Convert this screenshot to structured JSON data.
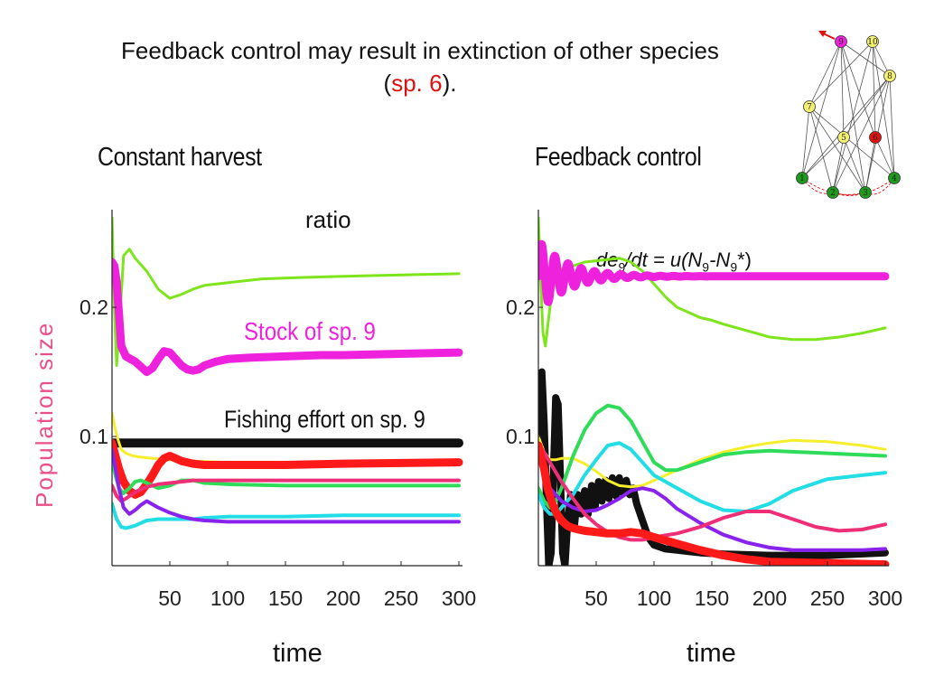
{
  "slide": {
    "title_main": "Feedback control may result in extinction of other species",
    "title_open": "(",
    "title_highlight": "sp. 6",
    "title_close": ")."
  },
  "annotations": {
    "ratio": "ratio",
    "equation": {
      "d": "de",
      "sub1": "9",
      "mid": "/dt = ",
      "u": "u",
      "open": "(N",
      "sub2": "9",
      "dash": "-N",
      "sub3": "9",
      "close": "*)"
    },
    "stock_label": "Stock of sp. 9",
    "effort_label": "Fishing effort on sp. 9"
  },
  "colors": {
    "lime": "#7ee51c",
    "magenta": "#ee22dd",
    "black": "#111111",
    "red": "#ff1a1a",
    "yellow": "#f6ee2a",
    "green": "#2fdc5a",
    "cyan": "#22dde6",
    "pink": "#ee2f78",
    "purple": "#8a22ee",
    "network_green": "#1e9a1e",
    "network_yellow": "#f3ef70",
    "network_red": "#e01010"
  },
  "chart_data": [
    {
      "type": "line",
      "title": "Constant harvest",
      "xlabel": "time",
      "ylabel": "Population size",
      "xlim": [
        0,
        300
      ],
      "ylim": [
        0,
        0.27
      ],
      "xticks": [
        "50",
        "100",
        "150",
        "200",
        "250",
        "300"
      ],
      "xtick_values": [
        50,
        100,
        150,
        200,
        250,
        300
      ],
      "yticks": [
        "0.1",
        "0.2"
      ],
      "ytick_values": [
        0.1,
        0.2
      ],
      "series": [
        {
          "color": "lime",
          "width": 3,
          "x": [
            0,
            2,
            4,
            6,
            10,
            15,
            20,
            30,
            40,
            50,
            60,
            70,
            80,
            100,
            130,
            160,
            200,
            250,
            300
          ],
          "y": [
            0.27,
            0.2,
            0.155,
            0.18,
            0.24,
            0.245,
            0.238,
            0.228,
            0.214,
            0.207,
            0.21,
            0.214,
            0.217,
            0.219,
            0.222,
            0.223,
            0.224,
            0.225,
            0.226
          ]
        },
        {
          "name": "Stock of sp. 9",
          "color": "magenta",
          "width": 9,
          "x": [
            0,
            2,
            4,
            6,
            8,
            12,
            16,
            20,
            25,
            30,
            35,
            40,
            45,
            50,
            55,
            60,
            65,
            70,
            75,
            80,
            90,
            100,
            120,
            150,
            180,
            200,
            250,
            300
          ],
          "y": [
            0.235,
            0.232,
            0.22,
            0.195,
            0.17,
            0.162,
            0.16,
            0.158,
            0.154,
            0.15,
            0.153,
            0.16,
            0.166,
            0.165,
            0.16,
            0.155,
            0.152,
            0.151,
            0.152,
            0.155,
            0.158,
            0.16,
            0.161,
            0.162,
            0.163,
            0.163,
            0.164,
            0.165
          ]
        },
        {
          "name": "Fishing effort on sp. 9",
          "color": "black",
          "width": 10,
          "x": [
            0,
            300
          ],
          "y": [
            0.095,
            0.095
          ]
        },
        {
          "color": "yellow",
          "width": 3,
          "x": [
            0,
            3,
            5,
            8,
            12,
            18,
            25,
            35,
            50,
            70,
            100,
            150,
            200,
            250,
            300
          ],
          "y": [
            0.118,
            0.105,
            0.098,
            0.09,
            0.087,
            0.085,
            0.084,
            0.083,
            0.082,
            0.081,
            0.08,
            0.079,
            0.078,
            0.078,
            0.078
          ]
        },
        {
          "color": "red",
          "width": 9,
          "x": [
            0,
            3,
            6,
            10,
            15,
            20,
            25,
            30,
            35,
            40,
            45,
            50,
            55,
            60,
            65,
            70,
            80,
            100,
            150,
            200,
            300
          ],
          "y": [
            0.095,
            0.085,
            0.075,
            0.065,
            0.058,
            0.055,
            0.057,
            0.063,
            0.07,
            0.078,
            0.083,
            0.085,
            0.083,
            0.081,
            0.08,
            0.079,
            0.078,
            0.078,
            0.078,
            0.079,
            0.08
          ]
        },
        {
          "color": "green",
          "width": 4,
          "x": [
            0,
            3,
            6,
            10,
            15,
            20,
            25,
            30,
            40,
            50,
            60,
            70,
            80,
            100,
            150,
            200,
            300
          ],
          "y": [
            0.082,
            0.07,
            0.06,
            0.056,
            0.06,
            0.065,
            0.066,
            0.064,
            0.06,
            0.062,
            0.066,
            0.066,
            0.064,
            0.063,
            0.062,
            0.062,
            0.062
          ]
        },
        {
          "color": "pink",
          "width": 4,
          "x": [
            0,
            4,
            8,
            12,
            20,
            30,
            40,
            50,
            60,
            70,
            80,
            100,
            150,
            200,
            300
          ],
          "y": [
            0.062,
            0.054,
            0.05,
            0.052,
            0.057,
            0.061,
            0.063,
            0.064,
            0.065,
            0.066,
            0.066,
            0.066,
            0.066,
            0.066,
            0.066
          ]
        },
        {
          "color": "cyan",
          "width": 4,
          "x": [
            0,
            4,
            8,
            12,
            20,
            30,
            40,
            50,
            60,
            70,
            80,
            100,
            150,
            200,
            300
          ],
          "y": [
            0.048,
            0.036,
            0.03,
            0.029,
            0.031,
            0.035,
            0.036,
            0.036,
            0.036,
            0.036,
            0.037,
            0.038,
            0.038,
            0.039,
            0.039
          ]
        },
        {
          "color": "purple",
          "width": 4,
          "x": [
            0,
            3,
            6,
            10,
            15,
            20,
            25,
            30,
            40,
            50,
            60,
            70,
            80,
            100,
            150,
            200,
            300
          ],
          "y": [
            0.09,
            0.075,
            0.06,
            0.045,
            0.04,
            0.043,
            0.047,
            0.05,
            0.045,
            0.041,
            0.038,
            0.036,
            0.035,
            0.034,
            0.034,
            0.034,
            0.034
          ]
        }
      ]
    },
    {
      "type": "line",
      "title": "Feedback control",
      "xlabel": "time",
      "xlim": [
        0,
        300
      ],
      "ylim": [
        0,
        0.27
      ],
      "xticks": [
        "50",
        "100",
        "150",
        "200",
        "250",
        "300"
      ],
      "xtick_values": [
        50,
        100,
        150,
        200,
        250,
        300
      ],
      "yticks": [
        "0.1",
        "0.2"
      ],
      "ytick_values": [
        0.1,
        0.2
      ],
      "series": [
        {
          "color": "lime",
          "width": 3,
          "x": [
            0,
            2,
            4,
            6,
            10,
            15,
            20,
            30,
            40,
            50,
            60,
            70,
            80,
            90,
            100,
            110,
            120,
            130,
            140,
            150,
            160,
            180,
            200,
            220,
            240,
            260,
            280,
            300
          ],
          "y": [
            0.27,
            0.22,
            0.18,
            0.17,
            0.2,
            0.225,
            0.23,
            0.232,
            0.235,
            0.236,
            0.237,
            0.238,
            0.235,
            0.228,
            0.218,
            0.208,
            0.2,
            0.196,
            0.192,
            0.19,
            0.187,
            0.182,
            0.177,
            0.175,
            0.175,
            0.177,
            0.18,
            0.184
          ]
        },
        {
          "name": "Stock of sp. 9",
          "color": "magenta",
          "width": 9,
          "amp": [
            0.028,
            0.0,
            0.002
          ],
          "omega": 0.55,
          "decay": 0.04,
          "base": 0.224
        },
        {
          "name": "Fishing effort on sp. 9",
          "color": "black",
          "width": 8,
          "x": [
            0,
            1,
            3,
            5,
            7,
            9,
            11,
            13,
            15,
            17,
            19,
            21,
            23,
            25,
            28,
            31,
            34,
            37,
            40,
            43,
            46,
            49,
            52,
            55,
            58,
            61,
            64,
            67,
            70,
            73,
            76,
            79,
            82,
            85,
            90,
            95,
            100,
            110,
            120,
            140,
            160,
            200,
            250,
            300
          ],
          "y": [
            0.1,
            0.14,
            0.15,
            0.11,
            0.05,
            0.0,
            0.01,
            0.07,
            0.13,
            0.125,
            0.07,
            0.01,
            0.0,
            0.03,
            0.055,
            0.03,
            0.055,
            0.04,
            0.058,
            0.04,
            0.062,
            0.045,
            0.065,
            0.05,
            0.066,
            0.052,
            0.068,
            0.054,
            0.068,
            0.056,
            0.066,
            0.055,
            0.06,
            0.048,
            0.035,
            0.022,
            0.016,
            0.013,
            0.012,
            0.01,
            0.009,
            0.008,
            0.008,
            0.01
          ]
        },
        {
          "color": "yellow",
          "width": 3,
          "x": [
            0,
            5,
            10,
            15,
            20,
            30,
            40,
            50,
            60,
            70,
            80,
            90,
            100,
            120,
            140,
            160,
            180,
            200,
            220,
            250,
            280,
            300
          ],
          "y": [
            0.1,
            0.088,
            0.082,
            0.082,
            0.083,
            0.083,
            0.079,
            0.073,
            0.066,
            0.062,
            0.061,
            0.062,
            0.066,
            0.074,
            0.082,
            0.088,
            0.092,
            0.095,
            0.097,
            0.096,
            0.093,
            0.09
          ]
        },
        {
          "color": "green",
          "width": 4,
          "x": [
            0,
            5,
            10,
            15,
            20,
            30,
            40,
            50,
            60,
            70,
            80,
            90,
            100,
            110,
            120,
            140,
            160,
            180,
            200,
            250,
            300
          ],
          "y": [
            0.06,
            0.05,
            0.045,
            0.05,
            0.06,
            0.085,
            0.105,
            0.118,
            0.124,
            0.122,
            0.112,
            0.096,
            0.08,
            0.074,
            0.074,
            0.08,
            0.086,
            0.088,
            0.089,
            0.087,
            0.085
          ]
        },
        {
          "color": "cyan",
          "width": 4,
          "x": [
            0,
            5,
            10,
            15,
            20,
            30,
            40,
            50,
            60,
            70,
            80,
            90,
            100,
            120,
            140,
            160,
            180,
            200,
            220,
            250,
            280,
            300
          ],
          "y": [
            0.055,
            0.045,
            0.04,
            0.04,
            0.045,
            0.055,
            0.07,
            0.082,
            0.093,
            0.095,
            0.09,
            0.08,
            0.07,
            0.06,
            0.05,
            0.043,
            0.042,
            0.048,
            0.058,
            0.067,
            0.07,
            0.072
          ]
        },
        {
          "color": "purple",
          "width": 4,
          "x": [
            0,
            5,
            10,
            15,
            20,
            30,
            40,
            50,
            60,
            70,
            80,
            90,
            100,
            110,
            120,
            140,
            160,
            180,
            200,
            220,
            250,
            280,
            300
          ],
          "y": [
            0.085,
            0.07,
            0.06,
            0.055,
            0.05,
            0.045,
            0.042,
            0.043,
            0.047,
            0.052,
            0.058,
            0.06,
            0.058,
            0.052,
            0.044,
            0.033,
            0.024,
            0.018,
            0.014,
            0.012,
            0.012,
            0.012,
            0.013
          ]
        },
        {
          "color": "pink",
          "width": 4,
          "x": [
            0,
            10,
            20,
            30,
            40,
            50,
            60,
            70,
            80,
            90,
            100,
            120,
            140,
            160,
            180,
            200,
            220,
            240,
            260,
            280,
            300
          ],
          "y": [
            0.095,
            0.08,
            0.065,
            0.052,
            0.04,
            0.032,
            0.026,
            0.022,
            0.02,
            0.02,
            0.022,
            0.025,
            0.03,
            0.037,
            0.042,
            0.042,
            0.036,
            0.03,
            0.027,
            0.028,
            0.032
          ]
        },
        {
          "color": "red",
          "width": 9,
          "x": [
            0,
            2,
            5,
            8,
            12,
            16,
            20,
            25,
            30,
            35,
            40,
            50,
            60,
            70,
            80,
            90,
            100,
            120,
            140,
            160,
            180,
            200,
            250,
            300
          ],
          "y": [
            0.093,
            0.085,
            0.075,
            0.06,
            0.048,
            0.04,
            0.035,
            0.031,
            0.029,
            0.028,
            0.027,
            0.026,
            0.025,
            0.025,
            0.026,
            0.025,
            0.022,
            0.017,
            0.012,
            0.008,
            0.005,
            0.003,
            0.002,
            0.001
          ]
        }
      ]
    }
  ],
  "network": {
    "nodes": [
      {
        "label": "1",
        "color": "network_green"
      },
      {
        "label": "2",
        "color": "network_green"
      },
      {
        "label": "3",
        "color": "network_green"
      },
      {
        "label": "4",
        "color": "network_green"
      },
      {
        "label": "5",
        "color": "network_yellow"
      },
      {
        "label": "6",
        "color": "network_red"
      },
      {
        "label": "7",
        "color": "network_yellow"
      },
      {
        "label": "8",
        "color": "network_yellow"
      },
      {
        "label": "9",
        "color": "magenta"
      },
      {
        "label": "10",
        "color": "network_yellow"
      }
    ]
  }
}
